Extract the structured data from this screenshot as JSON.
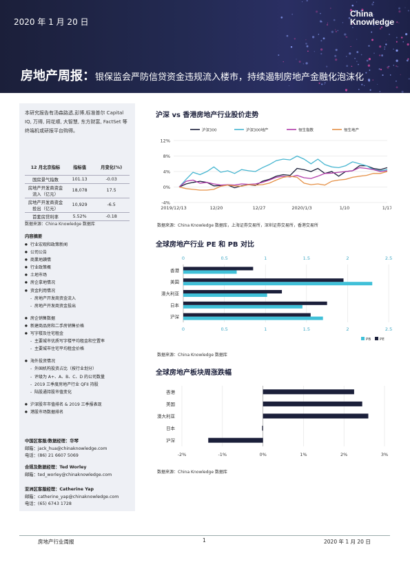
{
  "header": {
    "date": "2020 年 1 月 20 日",
    "logo_line1": "China",
    "logo_line2": "Knowledge",
    "title_main": "房地产周报：",
    "title_sub": "银保监会严防信贷资金违规流入楼市，持续遏制房地产金融化泡沫化"
  },
  "sidebar": {
    "intro": "本研究报告有汤森路透,彭博,标准普尔 Capital IQ, 万得, 同花顺, 大智慧, 东方财富, FactSet 等终端机或研报平台购得。",
    "kpi_headers": [
      "12 月北京指标",
      "指标值",
      "月变化(%)"
    ],
    "kpi_rows": [
      [
        "国房景气指数",
        "101.13",
        "-0.03"
      ],
      [
        "房地产开发商资金流入（亿元）",
        "18,078",
        "17.5"
      ],
      [
        "房地产开发商资金投出（亿元）",
        "10,929",
        "-6.5"
      ],
      [
        "首套房贷利率",
        "5.52%",
        "-0.18"
      ]
    ],
    "kpi_source": "数据来源：China Knowledge 数据库",
    "toc_title": "内容摘要",
    "toc_group1": [
      {
        "t": "b",
        "text": "行业宏观和政策新闻"
      },
      {
        "t": "b",
        "text": "公司公告"
      },
      {
        "t": "b",
        "text": "商業地讀情"
      },
      {
        "t": "b",
        "text": "行业政策概"
      },
      {
        "t": "b",
        "text": "土地市场"
      },
      {
        "t": "b",
        "text": "房企拿地情况"
      },
      {
        "t": "b",
        "text": "资金利用情况"
      },
      {
        "t": "s",
        "text": "房地产开发商资金流入"
      },
      {
        "t": "s",
        "text": "房地产开发商资金投出"
      }
    ],
    "toc_group2": [
      {
        "t": "b",
        "text": "房企销售数据"
      },
      {
        "t": "b",
        "text": "新建商品房和二手房销售价格"
      },
      {
        "t": "b",
        "text": "写字楼及住宅租金"
      },
      {
        "t": "s",
        "text": "主要城市优质写字楼平均租金和空置率"
      },
      {
        "t": "s",
        "text": "主要城市住宅平均租金价格"
      }
    ],
    "toc_group3": [
      {
        "t": "b",
        "text": "海外投资情况"
      },
      {
        "t": "s",
        "text": "外国机构投资占比（按行业划分）"
      },
      {
        "t": "s",
        "text": "评级为 A+、A、B、C、D 的公司数量"
      },
      {
        "t": "s",
        "text": "2019 三季度房地产行业 QFII 持股"
      },
      {
        "t": "s",
        "text": "陆股通持股市值变化"
      }
    ],
    "toc_group4": [
      {
        "t": "b",
        "text": "沪深股市市值排名 & 2019 三季报表现"
      },
      {
        "t": "b",
        "text": "港股市场数据排名"
      }
    ],
    "contacts": [
      {
        "role": "中国区客服/数据经理：华琴",
        "lines": [
          "邮箱：jack_hua@chinaknowledge.com",
          "电话：(86) 21 6607 5069"
        ]
      },
      {
        "role": "合规及数据经理：Ted Worley",
        "lines": [
          "邮箱：ted_worley@chinaknowledge.com"
        ]
      },
      {
        "role": "亚洲区客服经理：Catherine Yap",
        "lines": [
          "邮箱：catherine_yap@chinaknowledge.com",
          "电话：(65) 6743 1728"
        ]
      }
    ]
  },
  "sections": {
    "s1_title": "沪深 vs 香港房地产行业股价走势",
    "s1_source": "数据来源：China Knowledge 数据库，上海证券交易所，深圳证券交易所，香港交易所",
    "s2_title": "全球房地产行业 PE 和 PB 对比",
    "s2_source": "数据来源：China Knowledge 数据库",
    "s3_title": "全球房地产板块周涨跌幅",
    "s3_source": "数据来源：China Knowledge 数据库"
  },
  "chart_data": [
    {
      "type": "line",
      "title": "沪深 vs 香港房地产行业股价走势",
      "x_ticks": [
        "2019/12/13",
        "12/20",
        "12/27",
        "2020/1/3",
        "1/10",
        "1/17"
      ],
      "y_ticks": [
        "-4%",
        "0%",
        "4%",
        "8%",
        "12%"
      ],
      "ylim": [
        -4,
        12
      ],
      "legend_position": "top",
      "series": [
        {
          "name": "沪深300",
          "color": "#1b1f3a",
          "values": [
            0,
            0.8,
            1.2,
            1.5,
            1.2,
            0.3,
            0.4,
            0.5,
            -0.2,
            0.3,
            0.6,
            0.4,
            1.5,
            2.0,
            2.8,
            3.2,
            3.0,
            4.8,
            4.5,
            4.0,
            4.8,
            3.5,
            4.0,
            2.8,
            4.0,
            4.2,
            5.5,
            5.5,
            4.8,
            4.5,
            5.0
          ]
        },
        {
          "name": "沪深300地产",
          "color": "#45b5d0",
          "values": [
            0,
            2.0,
            3.8,
            3.2,
            4.0,
            5.2,
            3.8,
            4.2,
            3.5,
            4.5,
            4.2,
            4.0,
            5.0,
            5.8,
            6.8,
            7.2,
            7.0,
            8.0,
            7.2,
            6.0,
            7.2,
            5.8,
            5.2,
            5.0,
            5.5,
            6.5,
            6.0,
            5.5,
            4.5,
            4.2,
            4.5
          ]
        },
        {
          "name": "恒生指数",
          "color": "#b03aa8",
          "values": [
            0,
            1.5,
            1.8,
            1.0,
            1.2,
            0.8,
            0.5,
            0.6,
            0.5,
            0.8,
            0.7,
            0.8,
            1.2,
            1.8,
            2.5,
            2.8,
            2.6,
            3.0,
            2.4,
            2.2,
            2.8,
            3.5,
            3.6,
            3.8,
            4.0,
            4.2,
            5.0,
            4.8,
            4.5,
            4.0,
            4.2
          ]
        },
        {
          "name": "恒生地产",
          "color": "#e59046",
          "values": [
            0,
            -0.4,
            -0.6,
            -0.8,
            -0.8,
            -0.6,
            0.2,
            0.5,
            0.3,
            0.2,
            0.6,
            0.5,
            0.6,
            1.0,
            1.8,
            2.5,
            2.8,
            2.5,
            1.0,
            0.6,
            0.8,
            0.5,
            1.5,
            1.8,
            2.0,
            2.5,
            2.8,
            3.0,
            3.5,
            3.5,
            4.0
          ]
        }
      ]
    },
    {
      "type": "bar",
      "title": "全球房地产行业 PE 和 PB 对比",
      "categories": [
        "香港",
        "美国",
        "澳大利亚",
        "日本",
        "沪深"
      ],
      "x_ticks": [
        "0",
        "0.5",
        "1",
        "1.5",
        "2",
        "2.5"
      ],
      "xlim": [
        0,
        2.5
      ],
      "legend_position": "bottom-right",
      "series": [
        {
          "name": "PB",
          "color": "#40c0d8",
          "values": [
            0.65,
            2.3,
            1.02,
            1.45,
            1.7
          ]
        },
        {
          "name": "PE",
          "color": "#1b1f3a",
          "values": [
            0.85,
            1.95,
            1.2,
            1.75,
            1.55
          ]
        }
      ]
    },
    {
      "type": "bar",
      "title": "全球房地产板块周涨跌幅",
      "categories": [
        "香港",
        "美国",
        "澳大利亚",
        "日本",
        "沪深"
      ],
      "x_ticks": [
        "-2%",
        "-1%",
        "0%",
        "1%",
        "2%",
        "3%"
      ],
      "xlim": [
        -2,
        3
      ],
      "series": [
        {
          "name": "周涨跌幅",
          "color": "#1b1f3a",
          "values": [
            2.25,
            2.45,
            2.6,
            -0.02,
            -1.35
          ]
        }
      ]
    }
  ],
  "footer": {
    "left": "房地产行业周报",
    "page": "1",
    "right": "2020 年 1 月 20 日"
  }
}
